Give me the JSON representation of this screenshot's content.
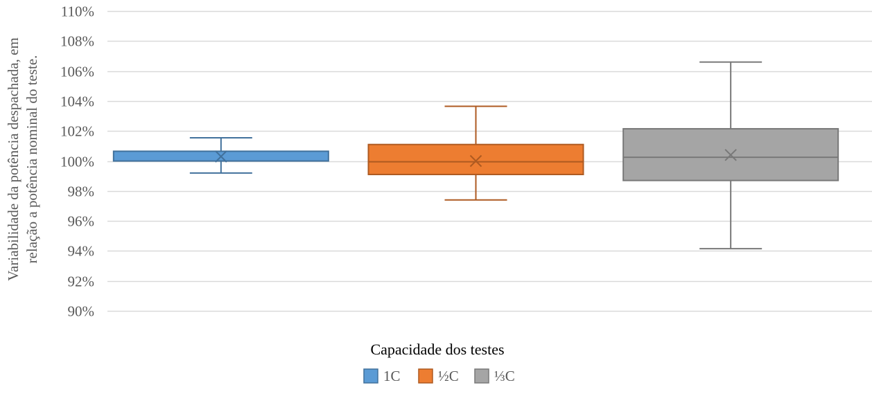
{
  "chart_data": {
    "type": "boxplot",
    "title": "",
    "ylabel_line1": "Variabilidade da potência despachada, em",
    "ylabel_line2": "relação a potência nominal do teste.",
    "xlabel": "Capacidade dos testes",
    "ylim": [
      90,
      110
    ],
    "ytick_step": 2,
    "ytick_suffix": "%",
    "grid": true,
    "legend_position": "bottom",
    "series": [
      {
        "name": "1C",
        "color": "#5B9BD5",
        "edge": "#41719C",
        "min": 99.2,
        "q1": 100.0,
        "median": 100.0,
        "q3": 100.65,
        "max": 101.55,
        "mean": 100.3
      },
      {
        "name": "½C",
        "color": "#ED7D31",
        "edge": "#AE5A21",
        "min": 97.4,
        "q1": 99.1,
        "median": 99.95,
        "q3": 101.1,
        "max": 103.65,
        "mean": 100.0
      },
      {
        "name": "⅓C",
        "color": "#A5A5A5",
        "edge": "#787878",
        "min": 94.15,
        "q1": 98.7,
        "median": 100.25,
        "q3": 102.15,
        "max": 106.6,
        "mean": 100.4
      }
    ]
  }
}
